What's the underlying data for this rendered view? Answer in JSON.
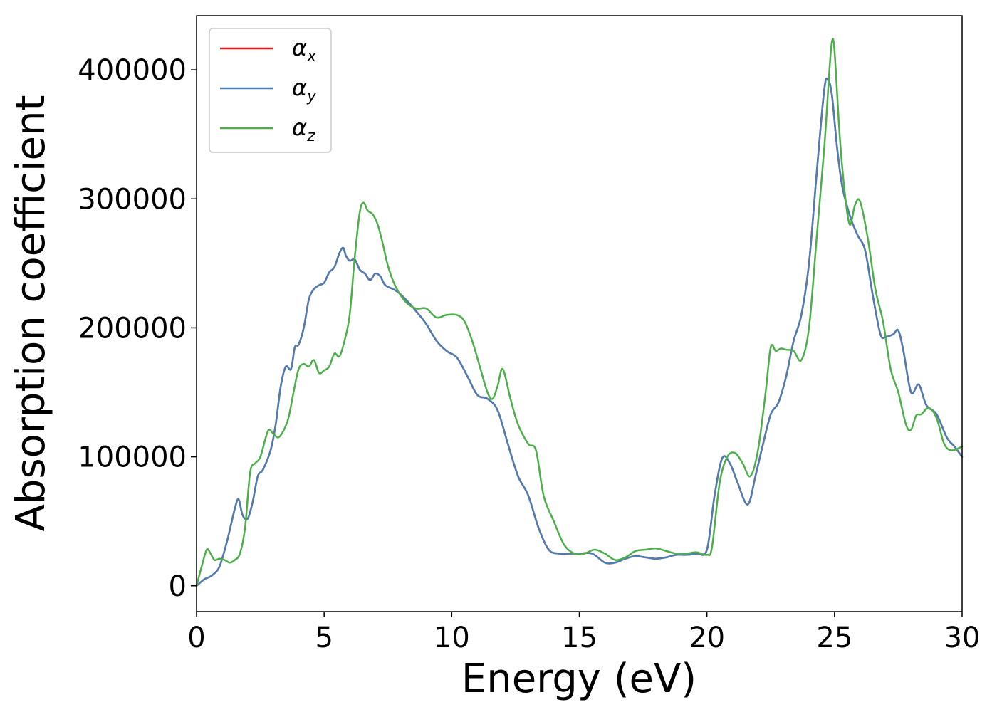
{
  "chart_data": {
    "type": "line",
    "title": "",
    "xlabel": "Energy (eV)",
    "ylabel": "Absorption coefficient",
    "xlim": [
      0,
      30
    ],
    "ylim": [
      -20000,
      442000
    ],
    "xticks": [
      0,
      5,
      10,
      15,
      20,
      25,
      30
    ],
    "yticks": [
      0,
      100000,
      200000,
      300000,
      400000
    ],
    "grid": false,
    "legend": "upper-left",
    "series": [
      {
        "name": "α_x",
        "symbol": "α",
        "subscript": "x",
        "color": "#e41a1c",
        "x": [
          0,
          0.3,
          0.6,
          0.9,
          1.2,
          1.5,
          1.65,
          1.8,
          2.0,
          2.2,
          2.4,
          2.6,
          2.9,
          3.1,
          3.3,
          3.5,
          3.7,
          3.85,
          4.0,
          4.2,
          4.4,
          4.6,
          4.8,
          5.0,
          5.2,
          5.4,
          5.6,
          5.75,
          5.85,
          6.0,
          6.2,
          6.4,
          6.6,
          6.8,
          7.0,
          7.2,
          7.4,
          7.8,
          8.2,
          8.6,
          9.0,
          9.4,
          9.8,
          10.2,
          10.6,
          11.0,
          11.4,
          11.8,
          12.2,
          12.6,
          13.0,
          13.4,
          13.8,
          14.2,
          14.6,
          15.0,
          15.5,
          16.0,
          16.4,
          16.8,
          17.2,
          17.6,
          18.0,
          18.4,
          18.8,
          19.2,
          19.6,
          20.0,
          20.3,
          20.6,
          20.9,
          21.2,
          21.6,
          21.9,
          22.2,
          22.5,
          22.8,
          23.1,
          23.4,
          23.7,
          24.0,
          24.3,
          24.6,
          24.75,
          24.9,
          25.1,
          25.3,
          25.6,
          25.9,
          26.2,
          26.5,
          26.8,
          27.0,
          27.3,
          27.5,
          27.7,
          28.0,
          28.3,
          28.6,
          29.0,
          29.4,
          29.7,
          30.0
        ],
        "y": [
          0,
          5000,
          8000,
          15000,
          35000,
          60000,
          67000,
          55000,
          52000,
          65000,
          85000,
          90000,
          105000,
          125000,
          155000,
          170000,
          168000,
          185000,
          187000,
          200000,
          222000,
          230000,
          233000,
          235000,
          243000,
          247000,
          258000,
          262000,
          256000,
          252000,
          253000,
          245000,
          242000,
          237000,
          242000,
          240000,
          233000,
          229000,
          222000,
          213000,
          203000,
          190000,
          182000,
          177000,
          163000,
          148000,
          145000,
          136000,
          110000,
          85000,
          70000,
          45000,
          28000,
          25000,
          25000,
          25000,
          25000,
          18000,
          18000,
          21000,
          23000,
          22000,
          21000,
          22000,
          24000,
          24000,
          25000,
          28000,
          70000,
          99000,
          95000,
          80000,
          63000,
          85000,
          110000,
          133000,
          142000,
          162000,
          190000,
          210000,
          250000,
          320000,
          385000,
          392000,
          380000,
          340000,
          310000,
          287000,
          272000,
          260000,
          225000,
          195000,
          193000,
          195000,
          198000,
          182000,
          150000,
          156000,
          140000,
          133000,
          115000,
          108000,
          100000
        ]
      },
      {
        "name": "α_y",
        "symbol": "α",
        "subscript": "y",
        "color": "#4a7eb5",
        "x": [
          0,
          0.3,
          0.6,
          0.9,
          1.2,
          1.5,
          1.65,
          1.8,
          2.0,
          2.2,
          2.4,
          2.6,
          2.9,
          3.1,
          3.3,
          3.5,
          3.7,
          3.85,
          4.0,
          4.2,
          4.4,
          4.6,
          4.8,
          5.0,
          5.2,
          5.4,
          5.6,
          5.75,
          5.85,
          6.0,
          6.2,
          6.4,
          6.6,
          6.8,
          7.0,
          7.2,
          7.4,
          7.8,
          8.2,
          8.6,
          9.0,
          9.4,
          9.8,
          10.2,
          10.6,
          11.0,
          11.4,
          11.8,
          12.2,
          12.6,
          13.0,
          13.4,
          13.8,
          14.2,
          14.6,
          15.0,
          15.5,
          16.0,
          16.4,
          16.8,
          17.2,
          17.6,
          18.0,
          18.4,
          18.8,
          19.2,
          19.6,
          20.0,
          20.3,
          20.6,
          20.9,
          21.2,
          21.6,
          21.9,
          22.2,
          22.5,
          22.8,
          23.1,
          23.4,
          23.7,
          24.0,
          24.3,
          24.6,
          24.75,
          24.9,
          25.1,
          25.3,
          25.6,
          25.9,
          26.2,
          26.5,
          26.8,
          27.0,
          27.3,
          27.5,
          27.7,
          28.0,
          28.3,
          28.6,
          29.0,
          29.4,
          29.7,
          30.0
        ],
        "y": [
          0,
          5000,
          8000,
          15000,
          35000,
          60000,
          67000,
          55000,
          52000,
          65000,
          85000,
          90000,
          105000,
          125000,
          155000,
          170000,
          168000,
          185000,
          187000,
          200000,
          222000,
          230000,
          233000,
          235000,
          243000,
          247000,
          258000,
          262000,
          256000,
          252000,
          253000,
          245000,
          242000,
          237000,
          242000,
          240000,
          233000,
          229000,
          222000,
          213000,
          203000,
          190000,
          182000,
          177000,
          163000,
          148000,
          145000,
          136000,
          110000,
          85000,
          70000,
          45000,
          28000,
          25000,
          25000,
          25000,
          25000,
          18000,
          18000,
          21000,
          23000,
          22000,
          21000,
          22000,
          24000,
          24000,
          25000,
          28000,
          70000,
          99000,
          95000,
          80000,
          63000,
          85000,
          110000,
          133000,
          142000,
          162000,
          190000,
          210000,
          250000,
          320000,
          385000,
          392000,
          380000,
          340000,
          310000,
          287000,
          272000,
          260000,
          225000,
          195000,
          193000,
          195000,
          198000,
          182000,
          150000,
          156000,
          140000,
          133000,
          115000,
          108000,
          100000
        ]
      },
      {
        "name": "α_z",
        "symbol": "α",
        "subscript": "z",
        "color": "#4daf4a",
        "x": [
          0,
          0.2,
          0.4,
          0.55,
          0.7,
          0.9,
          1.1,
          1.3,
          1.5,
          1.7,
          1.9,
          2.1,
          2.3,
          2.5,
          2.8,
          3.0,
          3.2,
          3.4,
          3.6,
          3.8,
          4.0,
          4.2,
          4.4,
          4.6,
          4.8,
          5.0,
          5.2,
          5.4,
          5.6,
          5.8,
          6.0,
          6.2,
          6.4,
          6.55,
          6.7,
          6.9,
          7.1,
          7.3,
          7.5,
          7.8,
          8.2,
          8.6,
          9.0,
          9.4,
          9.8,
          10.2,
          10.5,
          10.8,
          11.1,
          11.4,
          11.6,
          11.8,
          12.0,
          12.3,
          12.6,
          13.0,
          13.3,
          13.6,
          14.0,
          14.4,
          14.8,
          15.2,
          15.6,
          16.0,
          16.4,
          16.8,
          17.2,
          17.6,
          18.0,
          18.4,
          18.8,
          19.2,
          19.6,
          20.0,
          20.2,
          20.5,
          20.8,
          21.1,
          21.4,
          21.7,
          22.0,
          22.3,
          22.5,
          22.7,
          22.9,
          23.1,
          23.4,
          23.7,
          24.0,
          24.3,
          24.6,
          24.8,
          24.9,
          25.0,
          25.2,
          25.4,
          25.6,
          25.8,
          26.0,
          26.3,
          26.6,
          26.9,
          27.2,
          27.5,
          27.8,
          28.0,
          28.2,
          28.4,
          28.7,
          29.0,
          29.3,
          29.6,
          30.0
        ],
        "y": [
          0,
          15000,
          28000,
          25000,
          20000,
          21000,
          20000,
          18000,
          20000,
          25000,
          45000,
          88000,
          95000,
          100000,
          120000,
          118000,
          115000,
          120000,
          130000,
          150000,
          168000,
          172000,
          170000,
          175000,
          165000,
          167000,
          170000,
          180000,
          178000,
          190000,
          210000,
          255000,
          290000,
          297000,
          291000,
          288000,
          280000,
          265000,
          248000,
          232000,
          220000,
          215000,
          215000,
          208000,
          210000,
          210000,
          205000,
          190000,
          170000,
          150000,
          145000,
          155000,
          168000,
          145000,
          125000,
          110000,
          105000,
          70000,
          50000,
          32000,
          25000,
          25000,
          28000,
          25000,
          20000,
          22000,
          27000,
          28000,
          29000,
          27000,
          25000,
          25000,
          26000,
          24000,
          30000,
          80000,
          100000,
          103000,
          95000,
          85000,
          105000,
          150000,
          185000,
          182000,
          184000,
          183000,
          182000,
          175000,
          200000,
          270000,
          340000,
          400000,
          422000,
          415000,
          350000,
          305000,
          280000,
          295000,
          298000,
          270000,
          230000,
          205000,
          168000,
          150000,
          125000,
          121000,
          132000,
          133000,
          138000,
          130000,
          110000,
          105000,
          108000
        ]
      }
    ]
  }
}
